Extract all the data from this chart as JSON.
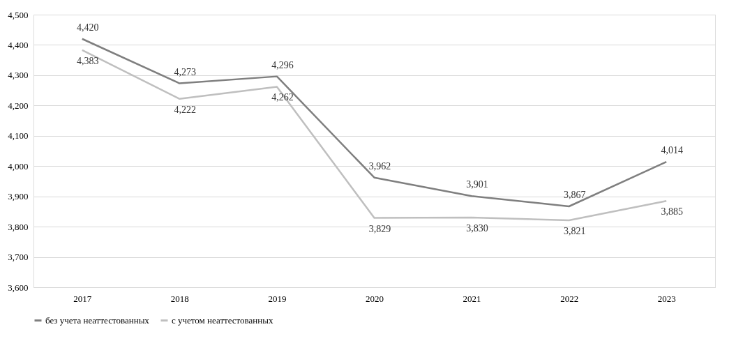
{
  "chart_data": {
    "type": "line",
    "categories": [
      "2017",
      "2018",
      "2019",
      "2020",
      "2021",
      "2022",
      "2023"
    ],
    "series": [
      {
        "name": "без учета неаттестованных",
        "color": "#7f7f7f",
        "values": [
          4420,
          4273,
          4296,
          3962,
          3901,
          3867,
          4014
        ],
        "value_labels": [
          "4,420",
          "4,273",
          "4,296",
          "3,962",
          "3,901",
          "3,867",
          "4,014"
        ]
      },
      {
        "name": "с учетом неаттестованных",
        "color": "#bfbfbf",
        "values": [
          4383,
          4222,
          4262,
          3829,
          3830,
          3821,
          3885
        ],
        "value_labels": [
          "4,383",
          "4,222",
          "4,262",
          "3,829",
          "3,830",
          "3,821",
          "3,885"
        ]
      }
    ],
    "ylim": [
      3600,
      4500
    ],
    "yticks": [
      {
        "value": 3600,
        "label": "3,600"
      },
      {
        "value": 3700,
        "label": "3,700"
      },
      {
        "value": 3800,
        "label": "3,800"
      },
      {
        "value": 3900,
        "label": "3,900"
      },
      {
        "value": 4000,
        "label": "4,000"
      },
      {
        "value": 4100,
        "label": "4,100"
      },
      {
        "value": 4200,
        "label": "4,200"
      },
      {
        "value": 4300,
        "label": "4,300"
      },
      {
        "value": 4400,
        "label": "4,400"
      },
      {
        "value": 4500,
        "label": "4,500"
      }
    ],
    "grid": "y",
    "legend": "bottom",
    "marker": "none",
    "line_style": "solid"
  }
}
